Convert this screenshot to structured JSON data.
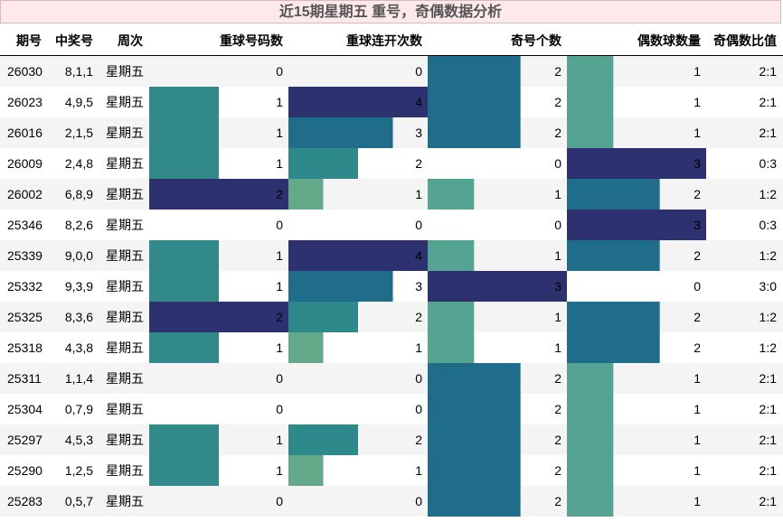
{
  "title": "近15期星期五 重号，奇偶数据分析",
  "headers": {
    "issue": "期号",
    "numbers": "中奖号",
    "weekday": "周次",
    "repeat_count": "重球号码数",
    "repeat_streak": "重球连开次数",
    "odd_count": "奇号个数",
    "even_count": "偶数球数量",
    "ratio": "奇偶数比值"
  },
  "colors": {
    "level1": "#32898a",
    "level1_streak": "#63a98a",
    "level2": "#1f6d8a",
    "level2_alt": "#2e8a8a",
    "level3": "#2e3170",
    "level4": "#2e3170",
    "even1": "#55a391",
    "row_alt": "#f4f4f4"
  },
  "chart_data": {
    "type": "table",
    "columns": [
      "期号",
      "中奖号",
      "周次",
      "重球号码数",
      "重球连开次数",
      "奇号个数",
      "偶数球数量",
      "奇偶数比值"
    ],
    "rows": [
      {
        "issue": "26030",
        "numbers": "8,1,1",
        "weekday": "星期五",
        "repeat_count": 0,
        "repeat_streak": 0,
        "odd_count": 2,
        "even_count": 1,
        "ratio": "2:1"
      },
      {
        "issue": "26023",
        "numbers": "4,9,5",
        "weekday": "星期五",
        "repeat_count": 1,
        "repeat_streak": 4,
        "odd_count": 2,
        "even_count": 1,
        "ratio": "2:1"
      },
      {
        "issue": "26016",
        "numbers": "2,1,5",
        "weekday": "星期五",
        "repeat_count": 1,
        "repeat_streak": 3,
        "odd_count": 2,
        "even_count": 1,
        "ratio": "2:1"
      },
      {
        "issue": "26009",
        "numbers": "2,4,8",
        "weekday": "星期五",
        "repeat_count": 1,
        "repeat_streak": 2,
        "odd_count": 0,
        "even_count": 3,
        "ratio": "0:3"
      },
      {
        "issue": "26002",
        "numbers": "6,8,9",
        "weekday": "星期五",
        "repeat_count": 2,
        "repeat_streak": 1,
        "odd_count": 1,
        "even_count": 2,
        "ratio": "1:2"
      },
      {
        "issue": "25346",
        "numbers": "8,2,6",
        "weekday": "星期五",
        "repeat_count": 0,
        "repeat_streak": 0,
        "odd_count": 0,
        "even_count": 3,
        "ratio": "0:3"
      },
      {
        "issue": "25339",
        "numbers": "9,0,0",
        "weekday": "星期五",
        "repeat_count": 1,
        "repeat_streak": 4,
        "odd_count": 1,
        "even_count": 2,
        "ratio": "1:2"
      },
      {
        "issue": "25332",
        "numbers": "9,3,9",
        "weekday": "星期五",
        "repeat_count": 1,
        "repeat_streak": 3,
        "odd_count": 3,
        "even_count": 0,
        "ratio": "3:0"
      },
      {
        "issue": "25325",
        "numbers": "8,3,6",
        "weekday": "星期五",
        "repeat_count": 2,
        "repeat_streak": 2,
        "odd_count": 1,
        "even_count": 2,
        "ratio": "1:2"
      },
      {
        "issue": "25318",
        "numbers": "4,3,8",
        "weekday": "星期五",
        "repeat_count": 1,
        "repeat_streak": 1,
        "odd_count": 1,
        "even_count": 2,
        "ratio": "1:2"
      },
      {
        "issue": "25311",
        "numbers": "1,1,4",
        "weekday": "星期五",
        "repeat_count": 0,
        "repeat_streak": 0,
        "odd_count": 2,
        "even_count": 1,
        "ratio": "2:1"
      },
      {
        "issue": "25304",
        "numbers": "0,7,9",
        "weekday": "星期五",
        "repeat_count": 0,
        "repeat_streak": 0,
        "odd_count": 2,
        "even_count": 1,
        "ratio": "2:1"
      },
      {
        "issue": "25297",
        "numbers": "4,5,3",
        "weekday": "星期五",
        "repeat_count": 1,
        "repeat_streak": 2,
        "odd_count": 2,
        "even_count": 1,
        "ratio": "2:1"
      },
      {
        "issue": "25290",
        "numbers": "1,2,5",
        "weekday": "星期五",
        "repeat_count": 1,
        "repeat_streak": 1,
        "odd_count": 2,
        "even_count": 1,
        "ratio": "2:1"
      },
      {
        "issue": "25283",
        "numbers": "0,5,7",
        "weekday": "星期五",
        "repeat_count": 0,
        "repeat_streak": 0,
        "odd_count": 2,
        "even_count": 1,
        "ratio": "2:1"
      }
    ],
    "bar_max": {
      "repeat_count": 2,
      "repeat_streak": 4,
      "odd_count": 3,
      "even_count": 3
    }
  }
}
